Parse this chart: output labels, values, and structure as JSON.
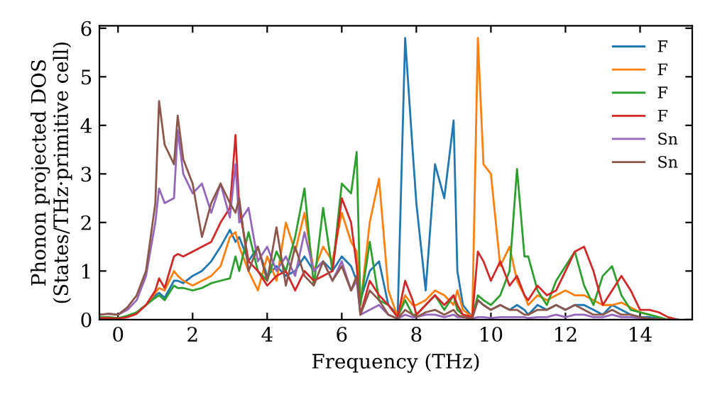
{
  "chart_data": {
    "type": "line",
    "xlabel": "Frequency (THz)",
    "ylabel": "Phonon projected DOS\n(States/THz·primitive cell)",
    "x": [
      -0.5,
      -0.25,
      0,
      0.25,
      0.5,
      0.75,
      1.0,
      1.1,
      1.25,
      1.5,
      1.6,
      1.75,
      2.0,
      2.25,
      2.5,
      2.75,
      3.0,
      3.15,
      3.25,
      3.5,
      3.75,
      4.0,
      4.25,
      4.5,
      4.75,
      5.0,
      5.25,
      5.5,
      5.75,
      6.0,
      6.25,
      6.4,
      6.5,
      6.75,
      7.0,
      7.25,
      7.5,
      7.7,
      7.9,
      8.0,
      8.25,
      8.5,
      8.75,
      9.0,
      9.1,
      9.25,
      9.5,
      9.65,
      9.8,
      10.0,
      10.25,
      10.5,
      10.7,
      10.9,
      11.0,
      11.25,
      11.5,
      11.75,
      12.0,
      12.25,
      12.5,
      12.75,
      13.0,
      13.25,
      13.5,
      13.75,
      14.0,
      14.25,
      14.5,
      14.75,
      15.0
    ],
    "series": [
      {
        "name": "F",
        "color": "#1f77b4",
        "values": [
          null,
          null,
          null,
          null,
          0.15,
          0.3,
          0.5,
          0.55,
          0.45,
          0.8,
          0.8,
          0.75,
          0.9,
          1.0,
          1.2,
          1.5,
          1.85,
          1.6,
          1.7,
          1.2,
          1.5,
          0.9,
          1.1,
          0.9,
          1.0,
          1.3,
          1.0,
          1.2,
          1.0,
          1.3,
          1.1,
          0.8,
          0.4,
          1.0,
          1.2,
          0.3,
          0.1,
          5.8,
          3.5,
          2.4,
          0.6,
          3.2,
          2.5,
          4.1,
          1.0,
          0.3,
          0.05,
          0.4,
          0.3,
          0.2,
          0.3,
          0.2,
          0.3,
          0.2,
          0.1,
          0.3,
          0.2,
          0.3,
          0.2,
          0.3,
          0.3,
          0.2,
          0.1,
          0.3,
          0.2,
          0.1,
          0.05,
          0.05,
          0.02,
          0.0,
          0.0
        ]
      },
      {
        "name": "F",
        "color": "#ff7f0e",
        "values": [
          null,
          null,
          null,
          null,
          0.15,
          0.3,
          0.55,
          0.65,
          0.6,
          1.0,
          0.9,
          0.8,
          0.7,
          0.8,
          0.9,
          1.1,
          1.7,
          1.8,
          1.5,
          1.0,
          0.6,
          1.3,
          0.8,
          2.0,
          1.4,
          2.2,
          1.0,
          1.5,
          1.2,
          2.2,
          1.6,
          1.4,
          0.3,
          2.0,
          2.9,
          0.6,
          0.05,
          0.5,
          0.3,
          0.3,
          0.4,
          0.6,
          0.5,
          0.3,
          0.6,
          0.2,
          0.05,
          5.8,
          3.2,
          3.0,
          1.1,
          1.5,
          0.8,
          0.5,
          0.3,
          0.5,
          0.4,
          0.5,
          0.6,
          0.5,
          0.5,
          0.4,
          0.3,
          0.3,
          0.35,
          0.25,
          0.15,
          0.1,
          null,
          null,
          null
        ]
      },
      {
        "name": "F",
        "color": "#2ca02c",
        "values": [
          0.05,
          0.05,
          0.03,
          0.08,
          0.15,
          0.3,
          0.45,
          0.5,
          0.4,
          0.7,
          0.65,
          0.65,
          0.6,
          0.65,
          0.75,
          0.8,
          0.85,
          1.3,
          1.0,
          1.8,
          1.0,
          0.8,
          1.4,
          1.0,
          1.7,
          2.7,
          0.7,
          2.3,
          1.0,
          2.8,
          2.6,
          3.45,
          0.3,
          1.6,
          0.4,
          0.3,
          0.05,
          0.4,
          0.1,
          0.1,
          0.3,
          0.5,
          0.2,
          0.5,
          0.2,
          0.1,
          0.05,
          0.5,
          0.4,
          0.3,
          0.5,
          1.0,
          3.1,
          1.3,
          1.3,
          0.6,
          0.3,
          0.8,
          1.1,
          1.4,
          0.7,
          0.3,
          0.9,
          1.1,
          0.5,
          0.2,
          0.15,
          0.1,
          0.05,
          0.0,
          0.0
        ]
      },
      {
        "name": "F",
        "color": "#d62728",
        "values": [
          0.03,
          0.03,
          0.02,
          0.05,
          0.12,
          0.3,
          0.6,
          0.85,
          0.65,
          1.3,
          1.35,
          1.3,
          1.4,
          1.5,
          1.6,
          2.0,
          2.3,
          3.8,
          2.3,
          1.2,
          1.0,
          0.7,
          0.9,
          1.0,
          0.6,
          1.0,
          0.8,
          0.9,
          1.0,
          2.5,
          2.0,
          1.1,
          0.1,
          0.8,
          0.5,
          0.3,
          0.05,
          0.8,
          0.4,
          0.1,
          0.3,
          0.5,
          0.3,
          0.5,
          0.3,
          0.1,
          0.05,
          1.4,
          1.2,
          0.8,
          1.2,
          0.7,
          0.9,
          0.5,
          0.4,
          0.7,
          0.5,
          0.6,
          1.0,
          1.4,
          1.5,
          1.0,
          0.3,
          0.6,
          0.9,
          0.6,
          0.2,
          0.2,
          0.15,
          0.05,
          0.0
        ]
      },
      {
        "name": "Sn",
        "color": "#9467bd",
        "values": [
          0.1,
          0.12,
          0.1,
          0.2,
          0.4,
          0.9,
          2.0,
          2.7,
          2.4,
          2.5,
          3.9,
          3.0,
          2.6,
          2.8,
          2.2,
          2.8,
          2.1,
          3.2,
          2.0,
          2.3,
          1.2,
          1.5,
          1.0,
          1.3,
          0.9,
          1.8,
          1.0,
          1.2,
          0.8,
          1.2,
          0.6,
          0.8,
          0.1,
          0.2,
          0.3,
          0.1,
          0.02,
          0.1,
          0.05,
          0.05,
          0.1,
          0.1,
          0.05,
          0.1,
          0.05,
          0.05,
          0.02,
          0.05,
          0.05,
          0.03,
          0.05,
          0.05,
          0.05,
          0.05,
          0.03,
          0.05,
          0.05,
          0.1,
          0.05,
          0.1,
          0.1,
          0.05,
          0.05,
          0.1,
          0.05,
          0.05,
          0.03,
          0.02,
          null,
          null,
          null
        ]
      },
      {
        "name": "Sn",
        "color": "#8c564b",
        "values": [
          0.1,
          0.12,
          0.1,
          0.25,
          0.5,
          1.0,
          2.4,
          4.5,
          3.6,
          3.2,
          4.2,
          3.3,
          2.8,
          1.7,
          2.4,
          2.8,
          2.4,
          2.2,
          2.5,
          1.0,
          1.5,
          0.8,
          1.9,
          0.7,
          1.5,
          0.9,
          0.7,
          1.2,
          0.8,
          1.1,
          0.6,
          0.9,
          0.1,
          0.6,
          0.4,
          0.1,
          0.02,
          0.2,
          0.1,
          0.05,
          0.15,
          0.2,
          0.1,
          0.2,
          0.1,
          0.05,
          0.02,
          0.4,
          0.3,
          0.2,
          0.3,
          0.2,
          0.2,
          0.1,
          0.1,
          0.2,
          0.2,
          0.3,
          0.2,
          0.3,
          0.2,
          0.1,
          0.1,
          0.2,
          0.1,
          0.1,
          0.05,
          0.02,
          0.01,
          0.0,
          0.0
        ]
      }
    ],
    "xlim": [
      -0.5,
      15.4
    ],
    "ylim": [
      0,
      6.05
    ],
    "xticks": [
      0,
      2,
      4,
      6,
      8,
      10,
      12,
      14
    ],
    "yticks": [
      0,
      1,
      2,
      3,
      4,
      5,
      6
    ],
    "grid": false,
    "legend": "top right",
    "marker": "none",
    "line_style": "solid"
  }
}
